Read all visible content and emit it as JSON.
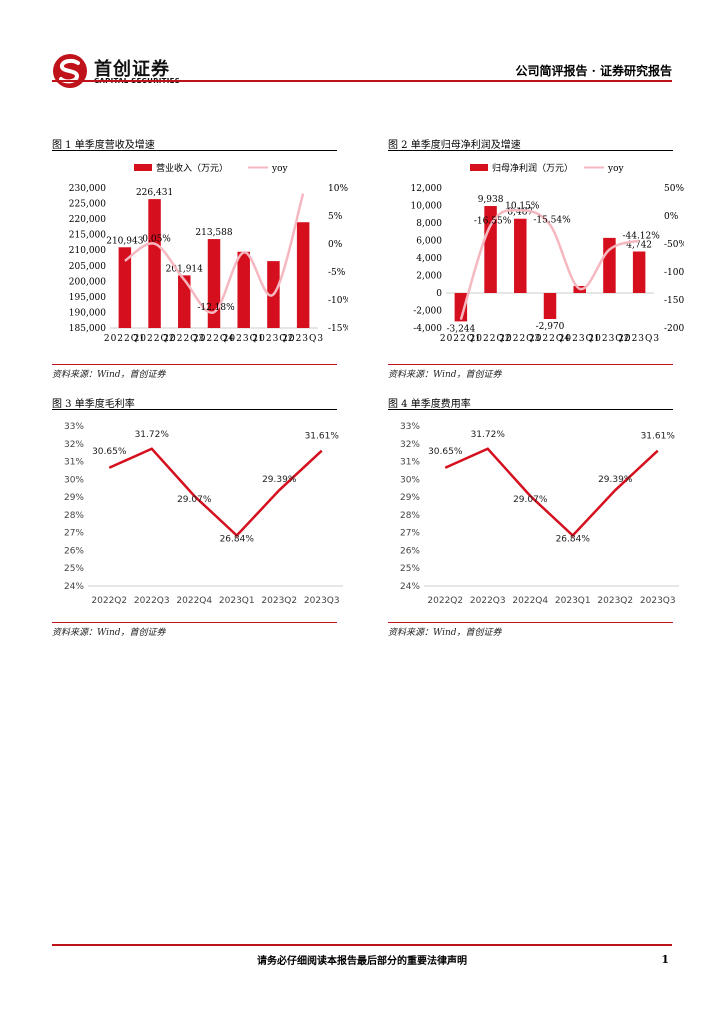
{
  "header": {
    "logo_cn": "首创证券",
    "logo_en": "CAPITAL SECURITIES",
    "report_type": "公司简评报告 · 证券研究报告"
  },
  "colors": {
    "accent": "#c0121b",
    "bar": "#d50f1d",
    "yoy_line": "#f5b8c0",
    "margin_line": "#d50f1d"
  },
  "figures": [
    {
      "title": "图 1 单季度营收及增速",
      "source": "资料来源：Wind，首创证券",
      "chart_data": {
        "type": "bar",
        "categories": [
          "2022Q1",
          "2022Q2",
          "2022Q3",
          "2022Q4",
          "2023Q1",
          "2023Q2",
          "2023Q3"
        ],
        "series": [
          {
            "name": "营业收入（万元）",
            "type": "bar",
            "axis": "left",
            "values": [
              210943,
              226431,
              201914,
              213588,
              209500,
              206500,
              219000
            ]
          },
          {
            "name": "yoy",
            "type": "line",
            "axis": "right",
            "values": [
              -3.0,
              0.05,
              -6.4,
              -12.18,
              -1.5,
              -9.0,
              9.0
            ]
          }
        ],
        "data_labels": [
          "210,943",
          "226,431",
          "201,914",
          "213,588",
          "",
          "",
          ""
        ],
        "line_labels": [
          "",
          "0.05%",
          "",
          "-12.18%",
          "",
          "",
          ""
        ],
        "left_ticks": [
          "230,000",
          "225,000",
          "220,000",
          "215,000",
          "210,000",
          "205,000",
          "200,000",
          "195,000",
          "190,000",
          "185,000"
        ],
        "right_ticks": [
          "10%",
          "5%",
          "0%",
          "-5%",
          "-10%",
          "-15%"
        ],
        "ylim": [
          185000,
          230000
        ],
        "y2lim": [
          -15,
          10
        ],
        "legend": "top"
      }
    },
    {
      "title": "图 2 单季度归母净利润及增速",
      "source": "资料来源：Wind，首创证券",
      "chart_data": {
        "type": "bar",
        "categories": [
          "2022Q1",
          "2022Q2",
          "2022Q3",
          "2022Q4",
          "2023Q1",
          "2023Q2",
          "2023Q3"
        ],
        "series": [
          {
            "name": "归母净利润（万元）",
            "type": "bar",
            "axis": "left",
            "values": [
              -3244,
              9938,
              8487,
              -2970,
              800,
              6300,
              4742
            ]
          },
          {
            "name": "yoy",
            "type": "line",
            "axis": "right",
            "values": [
              -185,
              -16.55,
              10.15,
              -15.54,
              -130,
              -60,
              -44.12
            ]
          }
        ],
        "data_labels": [
          "-3,244",
          "9,938",
          "8,487",
          "-2,970",
          "",
          "",
          "4,742"
        ],
        "line_labels": [
          "",
          "-16.55%",
          "10.15%",
          "-15.54%",
          "",
          "",
          "-44.12%"
        ],
        "left_ticks": [
          "12,000",
          "10,000",
          "8,000",
          "6,000",
          "4,000",
          "2,000",
          "0",
          "-2,000",
          "-4,000"
        ],
        "right_ticks": [
          "50%",
          "0%",
          "-50%",
          "-100%",
          "-150%",
          "-200%"
        ],
        "ylim": [
          -4000,
          12000
        ],
        "y2lim": [
          -200,
          50
        ],
        "legend": "top"
      }
    },
    {
      "title": "图 3 单季度毛利率",
      "source": "资料来源：Wind，首创证券",
      "chart_data": {
        "type": "line",
        "categories": [
          "2022Q2",
          "2022Q3",
          "2022Q4",
          "2023Q1",
          "2023Q2",
          "2023Q3"
        ],
        "values": [
          30.65,
          31.72,
          29.07,
          26.84,
          29.39,
          31.61
        ],
        "data_labels": [
          "30.65%",
          "31.72%",
          "29.07%",
          "26.84%",
          "29.39%",
          "31.61%"
        ],
        "ticks": [
          "33%",
          "32%",
          "31%",
          "30%",
          "29%",
          "28%",
          "27%",
          "26%",
          "25%",
          "24%"
        ],
        "ylim": [
          24,
          33
        ]
      }
    },
    {
      "title": "图 4 单季度费用率",
      "source": "资料来源：Wind，首创证券",
      "chart_data": {
        "type": "line",
        "categories": [
          "2022Q2",
          "2022Q3",
          "2022Q4",
          "2023Q1",
          "2023Q2",
          "2023Q3"
        ],
        "values": [
          30.65,
          31.72,
          29.07,
          26.84,
          29.39,
          31.61
        ],
        "data_labels": [
          "30.65%",
          "31.72%",
          "29.07%",
          "26.84%",
          "29.39%",
          "31.61%"
        ],
        "ticks": [
          "33%",
          "32%",
          "31%",
          "30%",
          "29%",
          "28%",
          "27%",
          "26%",
          "25%",
          "24%"
        ],
        "ylim": [
          24,
          33
        ]
      }
    }
  ],
  "footer": {
    "disclaimer": "请务必仔细阅读本报告最后部分的重要法律声明",
    "page_number": "1"
  }
}
